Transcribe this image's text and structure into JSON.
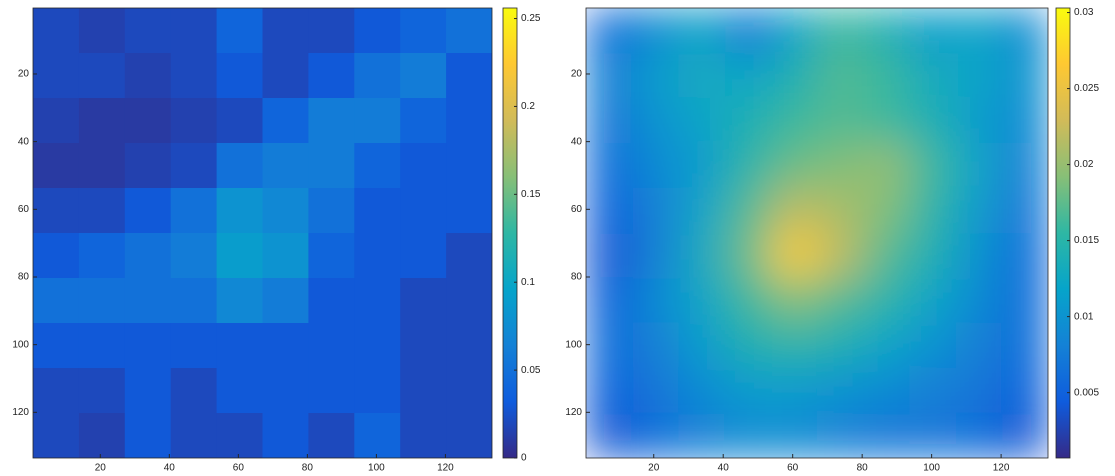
{
  "chart_data": [
    {
      "type": "heatmap",
      "colormap": [
        "#352a87",
        "#0f5cdd",
        "#1481d6",
        "#06a4ca",
        "#2eb7a4",
        "#87bf77",
        "#d1bb59",
        "#fec832",
        "#f9fb0e"
      ],
      "shading": "flat",
      "xbins": [
        0.5,
        13.8,
        27.1,
        40.4,
        53.7,
        67,
        80.3,
        93.6,
        106.9,
        120.2,
        133.5
      ],
      "ybins": [
        0.5,
        13.8,
        27.1,
        40.4,
        53.7,
        67,
        80.3,
        93.6,
        106.9,
        120.2,
        133.5
      ],
      "z": [
        [
          0.02,
          0.015,
          0.02,
          0.02,
          0.04,
          0.02,
          0.02,
          0.03,
          0.04,
          0.05
        ],
        [
          0.02,
          0.02,
          0.015,
          0.02,
          0.03,
          0.02,
          0.03,
          0.05,
          0.06,
          0.03
        ],
        [
          0.015,
          0.01,
          0.01,
          0.015,
          0.02,
          0.04,
          0.06,
          0.06,
          0.04,
          0.03
        ],
        [
          0.01,
          0.01,
          0.015,
          0.02,
          0.05,
          0.06,
          0.06,
          0.04,
          0.03,
          0.03
        ],
        [
          0.02,
          0.02,
          0.03,
          0.05,
          0.08,
          0.07,
          0.05,
          0.03,
          0.03,
          0.03
        ],
        [
          0.03,
          0.04,
          0.05,
          0.06,
          0.09,
          0.08,
          0.04,
          0.03,
          0.03,
          0.02
        ],
        [
          0.05,
          0.05,
          0.05,
          0.05,
          0.07,
          0.06,
          0.03,
          0.03,
          0.02,
          0.02
        ],
        [
          0.03,
          0.03,
          0.03,
          0.03,
          0.03,
          0.03,
          0.03,
          0.03,
          0.02,
          0.02
        ],
        [
          0.02,
          0.02,
          0.03,
          0.02,
          0.03,
          0.03,
          0.03,
          0.03,
          0.02,
          0.02
        ],
        [
          0.02,
          0.015,
          0.03,
          0.02,
          0.02,
          0.03,
          0.02,
          0.04,
          0.02,
          0.02
        ]
      ],
      "xlim": [
        0.5,
        133.5
      ],
      "ylim": [
        0.5,
        133.5
      ],
      "xticks": [
        20,
        40,
        60,
        80,
        100,
        120
      ],
      "yticks": [
        20,
        40,
        60,
        80,
        100,
        120
      ],
      "clim": [
        0,
        0.256
      ],
      "cticks": [
        0,
        0.05,
        0.1,
        0.15,
        0.2,
        0.25
      ]
    },
    {
      "type": "heatmap",
      "colormap": [
        "#352a87",
        "#0f5cdd",
        "#1481d6",
        "#06a4ca",
        "#2eb7a4",
        "#87bf77",
        "#d1bb59",
        "#fec832",
        "#f9fb0e"
      ],
      "shading": "interp",
      "xbins": [
        0.5,
        13.8,
        27.1,
        40.4,
        53.7,
        67,
        80.3,
        93.6,
        106.9,
        120.2,
        133.5
      ],
      "ybins": [
        0.5,
        13.8,
        27.1,
        40.4,
        53.7,
        67,
        80.3,
        93.6,
        106.9,
        120.2,
        133.5
      ],
      "z": [
        [
          0.006,
          0.009,
          0.012,
          0.007,
          0.012,
          0.016,
          0.014,
          0.011,
          0.012,
          0.009
        ],
        [
          0.008,
          0.011,
          0.013,
          0.012,
          0.014,
          0.017,
          0.016,
          0.013,
          0.012,
          0.01
        ],
        [
          0.007,
          0.01,
          0.012,
          0.014,
          0.016,
          0.017,
          0.016,
          0.014,
          0.011,
          0.009
        ],
        [
          0.006,
          0.009,
          0.011,
          0.015,
          0.018,
          0.019,
          0.02,
          0.016,
          0.012,
          0.008
        ],
        [
          0.005,
          0.008,
          0.012,
          0.017,
          0.022,
          0.021,
          0.019,
          0.015,
          0.011,
          0.007
        ],
        [
          0.004,
          0.008,
          0.013,
          0.018,
          0.027,
          0.022,
          0.017,
          0.014,
          0.01,
          0.006
        ],
        [
          0.005,
          0.009,
          0.012,
          0.016,
          0.019,
          0.017,
          0.015,
          0.012,
          0.009,
          0.006
        ],
        [
          0.006,
          0.008,
          0.011,
          0.014,
          0.015,
          0.014,
          0.012,
          0.01,
          0.008,
          0.006
        ],
        [
          0.005,
          0.007,
          0.009,
          0.011,
          0.011,
          0.01,
          0.009,
          0.008,
          0.007,
          0.005
        ],
        [
          0.004,
          0.006,
          0.008,
          0.009,
          0.009,
          0.008,
          0.007,
          0.007,
          0.006,
          0.004
        ]
      ],
      "xlim": [
        0.5,
        133.5
      ],
      "ylim": [
        0.5,
        133.5
      ],
      "xticks": [
        20,
        40,
        60,
        80,
        100,
        120
      ],
      "yticks": [
        20,
        40,
        60,
        80,
        100,
        120
      ],
      "clim": [
        0.0007,
        0.0303
      ],
      "cticks": [
        0.005,
        0.01,
        0.015,
        0.02,
        0.025,
        0.03
      ]
    }
  ]
}
